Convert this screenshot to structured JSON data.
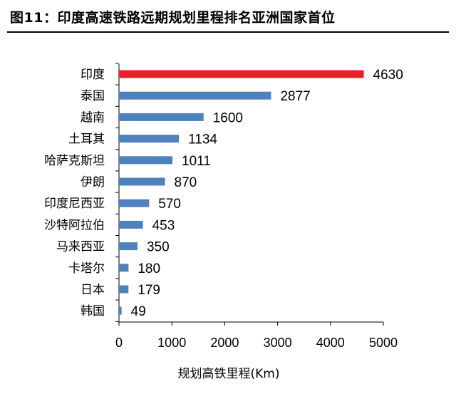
{
  "figure": {
    "title": "图11：印度高速铁路远期规划里程排名亚洲国家首位"
  },
  "colors": {
    "highlight": "#e8202a",
    "bar": "#4f81bd"
  },
  "chart_data": {
    "type": "bar",
    "orientation": "horizontal",
    "title": "",
    "xlabel": "规划高铁里程(Km)",
    "ylabel": "",
    "xlim": [
      0,
      5000
    ],
    "xticks": [
      0,
      1000,
      2000,
      3000,
      4000,
      5000
    ],
    "grid": false,
    "legend": "none",
    "categories": [
      "印度",
      "泰国",
      "越南",
      "土耳其",
      "哈萨克斯坦",
      "伊朗",
      "印度尼西亚",
      "沙特阿拉伯",
      "马来西亚",
      "卡塔尔",
      "日本",
      "韩国"
    ],
    "values": [
      4630,
      2877,
      1600,
      1134,
      1011,
      870,
      570,
      453,
      350,
      180,
      179,
      49
    ],
    "highlight_index": 0
  }
}
